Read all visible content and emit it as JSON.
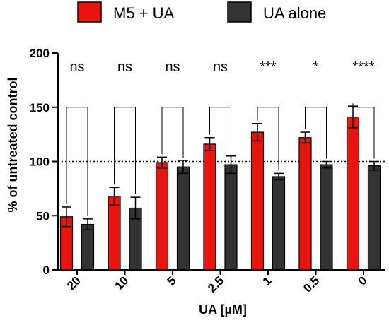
{
  "chart_data": {
    "type": "bar",
    "title": "",
    "xlabel": "UA [µM]",
    "ylabel": "% of untreated control",
    "ylim": [
      0,
      200
    ],
    "yticks": [
      0,
      50,
      100,
      150,
      200
    ],
    "reference_line": 100,
    "grid": false,
    "legend_position": "top",
    "categories": [
      "20",
      "10",
      "5",
      "2.5",
      "1",
      "0.5",
      "0"
    ],
    "series": [
      {
        "name": "M5 + UA",
        "color": "#e8150f",
        "values": [
          49,
          68,
          99,
          116,
          127,
          122,
          141
        ],
        "errors": [
          9,
          8,
          5,
          6,
          8,
          5,
          10
        ]
      },
      {
        "name": "UA alone",
        "color": "#333333",
        "values": [
          42,
          57,
          95,
          97,
          86,
          97,
          96
        ],
        "errors": [
          5,
          10,
          6,
          8,
          3,
          3,
          4
        ]
      }
    ],
    "significance": [
      "ns",
      "ns",
      "ns",
      "ns",
      "***",
      "*",
      "****"
    ]
  }
}
